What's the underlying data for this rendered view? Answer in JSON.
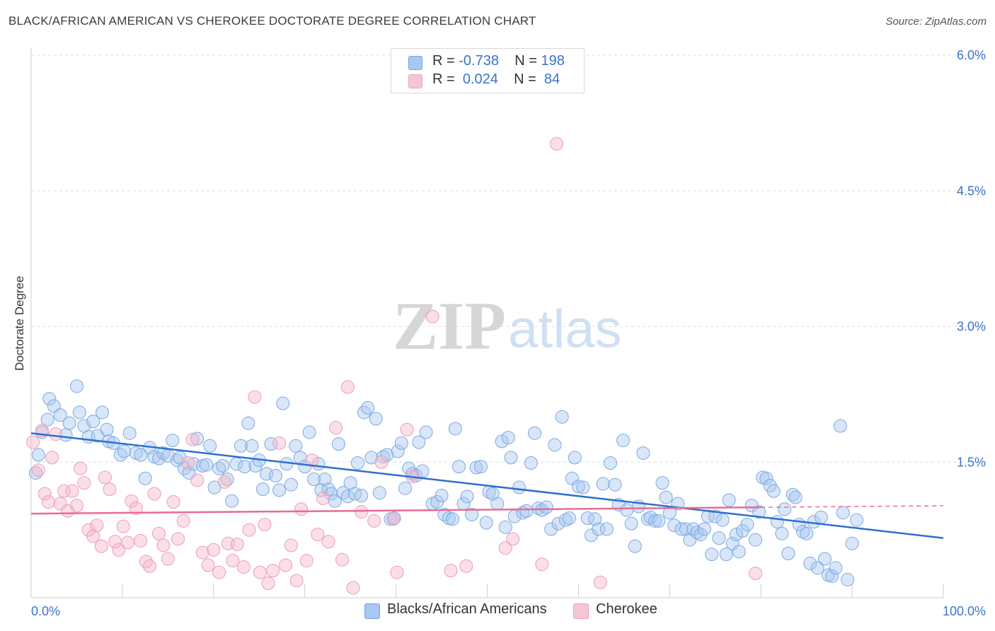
{
  "title": "BLACK/AFRICAN AMERICAN VS CHEROKEE DOCTORATE DEGREE CORRELATION CHART",
  "source": "Source: ZipAtlas.com",
  "watermark": {
    "zip": "ZIP",
    "atlas": "atlas"
  },
  "legend": {
    "r_label": "R =",
    "n_label": "N =",
    "rows": [
      {
        "name": "Blacks/African Americans",
        "r": "-0.738",
        "n": "198",
        "color": "#a9c8f0"
      },
      {
        "name": "Cherokee",
        "r": "0.024",
        "n": "84",
        "color": "#f5b8cb"
      }
    ]
  },
  "chart_data": {
    "type": "scatter",
    "title": "BLACK/AFRICAN AMERICAN VS CHEROKEE DOCTORATE DEGREE CORRELATION CHART",
    "xlabel": "",
    "ylabel": "Doctorate Degree",
    "xlim": [
      0,
      100
    ],
    "ylim": [
      0,
      6.0
    ],
    "x_tick_labels": [
      "0.0%",
      "100.0%"
    ],
    "y_ticks": [
      1.5,
      3.0,
      4.5,
      6.0
    ],
    "y_tick_labels": [
      "1.5%",
      "3.0%",
      "4.5%",
      "6.0%"
    ],
    "grid": true,
    "series": [
      {
        "name": "Blacks/African Americans",
        "color": "#6fa3e6",
        "trend": {
          "x": [
            0,
            100
          ],
          "y": [
            1.82,
            0.66
          ]
        },
        "points": [
          [
            0.5,
            1.38
          ],
          [
            0.8,
            1.58
          ],
          [
            1.2,
            1.83
          ],
          [
            1.8,
            1.97
          ],
          [
            2.0,
            2.2
          ],
          [
            2.5,
            2.12
          ],
          [
            3.2,
            2.02
          ],
          [
            3.8,
            1.8
          ],
          [
            4.2,
            1.93
          ],
          [
            5.0,
            2.34
          ],
          [
            5.3,
            2.05
          ],
          [
            5.8,
            1.9
          ],
          [
            6.3,
            1.78
          ],
          [
            6.8,
            1.95
          ],
          [
            7.3,
            1.79
          ],
          [
            7.8,
            2.05
          ],
          [
            8.3,
            1.86
          ],
          [
            8.5,
            1.73
          ],
          [
            9.0,
            1.71
          ],
          [
            9.8,
            1.58
          ],
          [
            10.2,
            1.62
          ],
          [
            10.8,
            1.82
          ],
          [
            11.5,
            1.6
          ],
          [
            12.0,
            1.58
          ],
          [
            12.5,
            1.32
          ],
          [
            13.0,
            1.66
          ],
          [
            13.5,
            1.56
          ],
          [
            14.0,
            1.54
          ],
          [
            14.5,
            1.6
          ],
          [
            15.0,
            1.57
          ],
          [
            15.5,
            1.74
          ],
          [
            16.0,
            1.52
          ],
          [
            16.3,
            1.55
          ],
          [
            16.8,
            1.43
          ],
          [
            17.3,
            1.38
          ],
          [
            17.8,
            1.48
          ],
          [
            18.2,
            1.76
          ],
          [
            18.8,
            1.46
          ],
          [
            19.2,
            1.47
          ],
          [
            19.6,
            1.68
          ],
          [
            20.1,
            1.22
          ],
          [
            20.6,
            1.43
          ],
          [
            21.0,
            1.46
          ],
          [
            21.5,
            1.31
          ],
          [
            22.0,
            1.07
          ],
          [
            22.5,
            1.48
          ],
          [
            23.0,
            1.68
          ],
          [
            23.4,
            1.45
          ],
          [
            23.8,
            1.93
          ],
          [
            24.2,
            1.68
          ],
          [
            24.6,
            1.46
          ],
          [
            25.0,
            1.52
          ],
          [
            25.4,
            1.2
          ],
          [
            25.8,
            1.37
          ],
          [
            26.3,
            1.7
          ],
          [
            26.8,
            1.35
          ],
          [
            27.2,
            1.19
          ],
          [
            27.6,
            2.15
          ],
          [
            28.0,
            1.48
          ],
          [
            28.5,
            1.25
          ],
          [
            29.0,
            1.68
          ],
          [
            29.5,
            1.55
          ],
          [
            30.0,
            1.45
          ],
          [
            30.5,
            1.83
          ],
          [
            31.0,
            1.31
          ],
          [
            31.5,
            1.48
          ],
          [
            31.8,
            1.19
          ],
          [
            32.2,
            1.31
          ],
          [
            32.6,
            1.2
          ],
          [
            32.9,
            1.15
          ],
          [
            33.3,
            1.07
          ],
          [
            33.7,
            1.7
          ],
          [
            34.2,
            1.16
          ],
          [
            34.7,
            1.12
          ],
          [
            35.0,
            1.27
          ],
          [
            35.5,
            1.15
          ],
          [
            35.8,
            1.49
          ],
          [
            36.2,
            1.13
          ],
          [
            36.5,
            2.05
          ],
          [
            36.9,
            2.1
          ],
          [
            37.3,
            1.55
          ],
          [
            37.8,
            1.98
          ],
          [
            38.2,
            1.16
          ],
          [
            38.6,
            1.56
          ],
          [
            39.0,
            1.58
          ],
          [
            39.4,
            0.87
          ],
          [
            39.8,
            0.88
          ],
          [
            40.2,
            1.62
          ],
          [
            40.6,
            1.71
          ],
          [
            41.0,
            1.21
          ],
          [
            41.4,
            1.43
          ],
          [
            41.8,
            1.37
          ],
          [
            42.2,
            1.35
          ],
          [
            42.5,
            1.72
          ],
          [
            42.9,
            1.4
          ],
          [
            43.3,
            1.83
          ],
          [
            44.0,
            1.04
          ],
          [
            44.5,
            1.06
          ],
          [
            45.0,
            1.13
          ],
          [
            45.3,
            0.92
          ],
          [
            45.8,
            0.88
          ],
          [
            46.2,
            0.87
          ],
          [
            46.5,
            1.87
          ],
          [
            46.9,
            1.45
          ],
          [
            47.4,
            1.04
          ],
          [
            47.8,
            1.12
          ],
          [
            48.3,
            0.92
          ],
          [
            48.8,
            1.44
          ],
          [
            49.3,
            1.45
          ],
          [
            49.9,
            0.83
          ],
          [
            50.2,
            1.17
          ],
          [
            50.6,
            1.15
          ],
          [
            51.1,
            1.04
          ],
          [
            51.6,
            1.73
          ],
          [
            52.0,
            0.78
          ],
          [
            52.3,
            1.77
          ],
          [
            52.6,
            1.55
          ],
          [
            53.0,
            0.9
          ],
          [
            53.5,
            1.22
          ],
          [
            53.9,
            0.94
          ],
          [
            54.3,
            0.96
          ],
          [
            54.8,
            1.49
          ],
          [
            55.2,
            1.82
          ],
          [
            55.6,
            0.99
          ],
          [
            56.0,
            0.97
          ],
          [
            56.5,
            1.0
          ],
          [
            57.0,
            0.76
          ],
          [
            57.4,
            1.69
          ],
          [
            57.8,
            0.82
          ],
          [
            58.2,
            2.0
          ],
          [
            58.6,
            0.86
          ],
          [
            59.0,
            0.88
          ],
          [
            59.3,
            1.32
          ],
          [
            59.6,
            1.55
          ],
          [
            60.0,
            1.23
          ],
          [
            60.5,
            1.22
          ],
          [
            61.0,
            0.88
          ],
          [
            61.4,
            0.69
          ],
          [
            61.8,
            0.87
          ],
          [
            62.2,
            0.76
          ],
          [
            62.7,
            1.26
          ],
          [
            63.1,
            0.76
          ],
          [
            63.5,
            1.49
          ],
          [
            64.0,
            1.25
          ],
          [
            64.4,
            1.03
          ],
          [
            64.9,
            1.74
          ],
          [
            65.3,
            0.97
          ],
          [
            65.8,
            0.82
          ],
          [
            66.2,
            0.57
          ],
          [
            66.6,
            1.01
          ],
          [
            67.1,
            1.6
          ],
          [
            67.6,
            0.87
          ],
          [
            67.9,
            0.89
          ],
          [
            68.4,
            0.85
          ],
          [
            68.8,
            0.85
          ],
          [
            69.2,
            1.27
          ],
          [
            69.6,
            1.11
          ],
          [
            70.0,
            0.94
          ],
          [
            70.5,
            0.8
          ],
          [
            70.9,
            1.04
          ],
          [
            71.3,
            0.76
          ],
          [
            71.8,
            0.76
          ],
          [
            72.2,
            0.64
          ],
          [
            72.6,
            0.76
          ],
          [
            73.0,
            0.72
          ],
          [
            73.4,
            0.7
          ],
          [
            73.8,
            0.76
          ],
          [
            74.2,
            0.9
          ],
          [
            74.6,
            0.48
          ],
          [
            75.0,
            0.9
          ],
          [
            75.4,
            0.66
          ],
          [
            75.8,
            0.86
          ],
          [
            76.2,
            0.48
          ],
          [
            76.5,
            1.08
          ],
          [
            76.9,
            0.6
          ],
          [
            77.3,
            0.7
          ],
          [
            77.6,
            0.51
          ],
          [
            78.0,
            0.74
          ],
          [
            78.5,
            0.81
          ],
          [
            79.0,
            1.02
          ],
          [
            79.4,
            0.64
          ],
          [
            79.8,
            0.95
          ],
          [
            80.2,
            1.33
          ],
          [
            80.6,
            1.32
          ],
          [
            81.0,
            1.24
          ],
          [
            81.4,
            1.18
          ],
          [
            81.8,
            0.84
          ],
          [
            82.3,
            0.71
          ],
          [
            82.6,
            0.98
          ],
          [
            83.0,
            0.49
          ],
          [
            83.5,
            1.14
          ],
          [
            83.8,
            1.11
          ],
          [
            84.2,
            0.81
          ],
          [
            84.6,
            0.73
          ],
          [
            85.0,
            0.71
          ],
          [
            85.4,
            0.38
          ],
          [
            85.8,
            0.84
          ],
          [
            86.2,
            0.33
          ],
          [
            86.6,
            0.89
          ],
          [
            87.0,
            0.43
          ],
          [
            87.4,
            0.25
          ],
          [
            87.8,
            0.24
          ],
          [
            88.2,
            0.33
          ],
          [
            88.7,
            1.9
          ],
          [
            89.0,
            0.94
          ],
          [
            89.5,
            0.2
          ],
          [
            90.0,
            0.6
          ],
          [
            90.5,
            0.86
          ]
        ]
      },
      {
        "name": "Cherokee",
        "color": "#f0a0bb",
        "trend": {
          "x": [
            0,
            80
          ],
          "y": [
            0.93,
            1.0
          ]
        },
        "points": [
          [
            0.2,
            1.72
          ],
          [
            0.8,
            1.41
          ],
          [
            1.2,
            1.85
          ],
          [
            1.5,
            1.15
          ],
          [
            1.9,
            1.06
          ],
          [
            2.3,
            1.55
          ],
          [
            2.7,
            1.81
          ],
          [
            3.2,
            1.04
          ],
          [
            3.6,
            1.18
          ],
          [
            4.0,
            0.96
          ],
          [
            4.5,
            1.18
          ],
          [
            5.0,
            1.02
          ],
          [
            5.4,
            1.43
          ],
          [
            5.8,
            1.27
          ],
          [
            6.3,
            0.75
          ],
          [
            6.8,
            0.68
          ],
          [
            7.2,
            0.8
          ],
          [
            7.7,
            0.57
          ],
          [
            8.1,
            1.33
          ],
          [
            8.6,
            1.2
          ],
          [
            9.2,
            0.62
          ],
          [
            9.6,
            0.53
          ],
          [
            10.1,
            0.79
          ],
          [
            10.6,
            0.61
          ],
          [
            11.0,
            1.07
          ],
          [
            11.5,
            0.99
          ],
          [
            12.0,
            0.63
          ],
          [
            12.6,
            0.4
          ],
          [
            13.0,
            0.35
          ],
          [
            13.5,
            1.15
          ],
          [
            14.0,
            0.71
          ],
          [
            14.5,
            0.58
          ],
          [
            15.0,
            0.43
          ],
          [
            15.6,
            1.06
          ],
          [
            16.1,
            0.65
          ],
          [
            16.7,
            0.85
          ],
          [
            17.2,
            1.49
          ],
          [
            17.7,
            1.75
          ],
          [
            18.2,
            1.3
          ],
          [
            18.8,
            0.5
          ],
          [
            19.4,
            0.36
          ],
          [
            20.0,
            0.53
          ],
          [
            20.6,
            0.28
          ],
          [
            21.2,
            1.28
          ],
          [
            21.6,
            0.6
          ],
          [
            22.1,
            0.41
          ],
          [
            22.6,
            0.59
          ],
          [
            23.3,
            0.34
          ],
          [
            23.9,
            0.75
          ],
          [
            24.5,
            2.22
          ],
          [
            25.1,
            0.28
          ],
          [
            25.6,
            0.81
          ],
          [
            26.0,
            0.16
          ],
          [
            26.5,
            0.3
          ],
          [
            27.2,
            1.71
          ],
          [
            27.9,
            0.36
          ],
          [
            28.5,
            0.58
          ],
          [
            29.1,
            0.19
          ],
          [
            29.6,
            0.98
          ],
          [
            30.2,
            0.41
          ],
          [
            30.8,
            1.52
          ],
          [
            31.4,
            0.7
          ],
          [
            32.0,
            1.1
          ],
          [
            32.6,
            0.62
          ],
          [
            33.4,
            1.88
          ],
          [
            34.1,
            0.42
          ],
          [
            34.7,
            2.33
          ],
          [
            35.3,
            0.11
          ],
          [
            36.2,
            0.95
          ],
          [
            37.6,
            0.85
          ],
          [
            38.4,
            1.5
          ],
          [
            39.7,
            0.87
          ],
          [
            40.1,
            0.28
          ],
          [
            41.2,
            1.86
          ],
          [
            41.8,
            1.34
          ],
          [
            44.0,
            3.11
          ],
          [
            46.0,
            0.3
          ],
          [
            47.7,
            0.35
          ],
          [
            52.0,
            0.55
          ],
          [
            52.8,
            0.65
          ],
          [
            56.0,
            0.37
          ],
          [
            57.6,
            5.02
          ],
          [
            62.4,
            0.17
          ],
          [
            79.4,
            0.27
          ]
        ]
      }
    ]
  }
}
